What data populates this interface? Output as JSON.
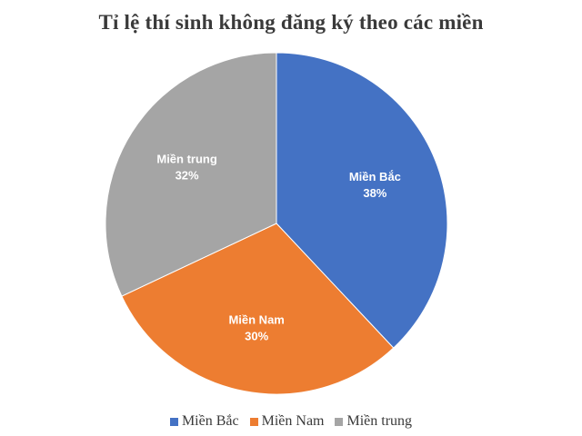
{
  "chart_data": {
    "type": "pie",
    "title": "Tỉ lệ thí sinh không đăng ký theo các miền",
    "categories": [
      "Miền Bắc",
      "Miền Nam",
      "Miền trung"
    ],
    "values": [
      38,
      30,
      32
    ],
    "value_labels": [
      "38%",
      "30%",
      "32%"
    ],
    "colors": [
      "#4472C4",
      "#ED7D31",
      "#A5A5A5"
    ],
    "start": "12 o'clock, clockwise",
    "legend_position": "bottom"
  }
}
